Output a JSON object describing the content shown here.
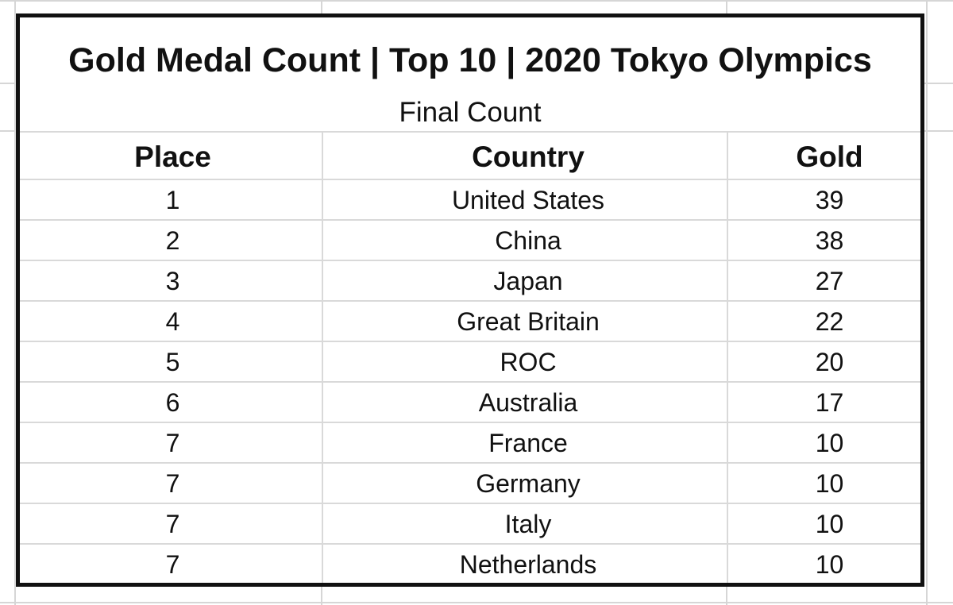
{
  "table": {
    "title": "Gold Medal Count | Top 10 | 2020 Tokyo Olympics",
    "subtitle": "Final Count",
    "columns": [
      "Place",
      "Country",
      "Gold"
    ],
    "rows": [
      {
        "place": "1",
        "country": "United States",
        "gold": "39"
      },
      {
        "place": "2",
        "country": "China",
        "gold": "38"
      },
      {
        "place": "3",
        "country": "Japan",
        "gold": "27"
      },
      {
        "place": "4",
        "country": "Great Britain",
        "gold": "22"
      },
      {
        "place": "5",
        "country": "ROC",
        "gold": "20"
      },
      {
        "place": "6",
        "country": "Australia",
        "gold": "17"
      },
      {
        "place": "7",
        "country": "France",
        "gold": "10"
      },
      {
        "place": "7",
        "country": "Germany",
        "gold": "10"
      },
      {
        "place": "7",
        "country": "Italy",
        "gold": "10"
      },
      {
        "place": "7",
        "country": "Netherlands",
        "gold": "10"
      }
    ]
  },
  "colors": {
    "border": "#111111",
    "gridline": "#d6d6d6",
    "background": "#ffffff"
  }
}
